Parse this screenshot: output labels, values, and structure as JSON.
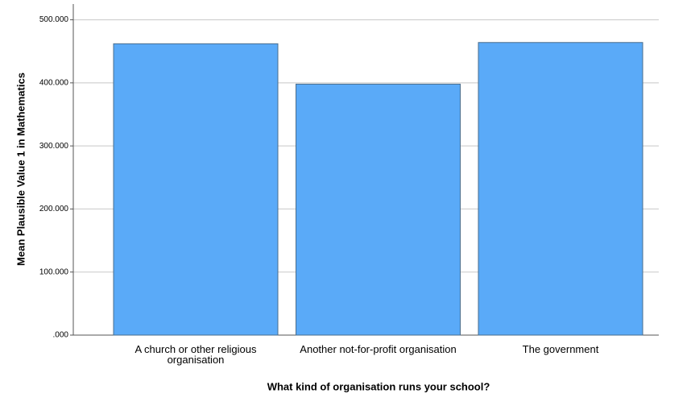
{
  "chart_data": {
    "type": "bar",
    "x_label": "What kind of organisation runs your school?",
    "y_label": "Mean Plausible Value 1 in Mathematics",
    "categories": [
      "A church or other religious organisation",
      "Another not-for-profit organisation",
      "The government"
    ],
    "values": [
      462,
      398,
      464
    ],
    "color": "#5aaaf8",
    "ylim": [
      0,
      525
    ],
    "yticks": [
      {
        "value": 0,
        "label": ".000"
      },
      {
        "value": 100,
        "label": "100.000"
      },
      {
        "value": 200,
        "label": "200.000"
      },
      {
        "value": 300,
        "label": "300.000"
      },
      {
        "value": 400,
        "label": "400.000"
      },
      {
        "value": 500,
        "label": "500.000"
      }
    ],
    "grid": true
  }
}
